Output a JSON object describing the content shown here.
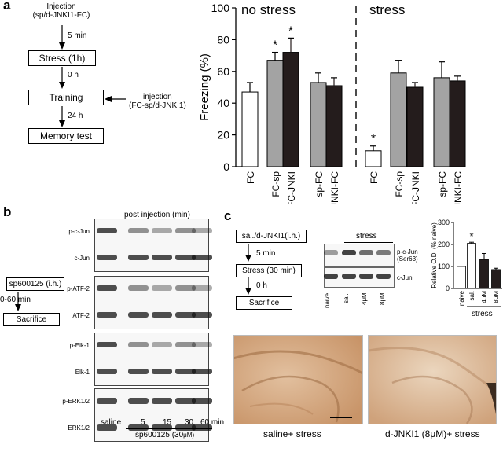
{
  "panel_a": {
    "label": "a",
    "flow": {
      "injection_top": "Injection",
      "injection_top_sub": "(sp/d-JNKI1-FC)",
      "t1": "5 min",
      "step1": "Stress (1h)",
      "t2": "0 h",
      "step2": "Training",
      "side_injection": "injection",
      "side_injection_sub": "(FC-sp/d-JNKI1)",
      "t3": "24 h",
      "step3": "Memory test"
    },
    "chart_data": {
      "type": "bar",
      "ylabel": "Freezing (%)",
      "ylim": [
        0,
        100
      ],
      "yticks": [
        "0",
        "20",
        "40",
        "60",
        "80",
        "100"
      ],
      "group_labels": [
        "no stress",
        "stress"
      ],
      "categories": [
        "FC",
        "FC-sp",
        "FC-JNKI",
        "sp-FC",
        "JNKI-FC",
        "FC",
        "FC-sp",
        "FC-JNKI",
        "sp-FC",
        "JNKI-FC"
      ],
      "values": [
        47,
        67,
        72,
        53,
        51,
        10,
        59,
        50,
        56,
        54
      ],
      "errors": [
        6,
        5,
        9,
        6,
        5,
        3,
        8,
        3,
        10,
        3
      ],
      "colors": [
        "#ffffff",
        "#a3a3a3",
        "#241c1c",
        "#a3a3a3",
        "#241c1c",
        "#ffffff",
        "#a3a3a3",
        "#241c1c",
        "#a3a3a3",
        "#241c1c"
      ],
      "significance": [
        "",
        "*",
        "*",
        "",
        "",
        "*",
        "",
        "",
        "",
        ""
      ]
    }
  },
  "panel_b": {
    "label": "b",
    "header": "post injection (min)",
    "flow": {
      "drug": "sp600125 (i.h.)",
      "time": "0-60 min",
      "end": "Sacrifice"
    },
    "blots": [
      "p-c-Jun",
      "c-Jun",
      "p-ATF-2",
      "ATF-2",
      "p-Elk-1",
      "Elk-1",
      "p-ERK1/2",
      "ERK1/2"
    ],
    "lanes": [
      "saline",
      "5",
      "15",
      "30",
      "60 min"
    ],
    "treatment": "sp600125 (30",
    "treatment_unit": "μM)"
  },
  "panel_c": {
    "label": "c",
    "flow": {
      "drug": "sal./d-JNKI1(i.h.)",
      "t1": "5 min",
      "step": "Stress (30 min)",
      "t2": "0 h",
      "end": "Sacrifice"
    },
    "blot_header": "stress",
    "blots": [
      "p-c-Jun",
      "(Ser63)",
      "c-Jun"
    ],
    "lanes": [
      "naive",
      "sal.",
      "4μM",
      "8μM"
    ],
    "chart_data": {
      "type": "bar",
      "ylabel": "Relative O.D. (% naive)",
      "ylim": [
        0,
        300
      ],
      "yticks": [
        "0",
        "100",
        "200",
        "300"
      ],
      "categories": [
        "naive",
        "sal.",
        "4μM",
        "8μM"
      ],
      "values": [
        100,
        205,
        132,
        86
      ],
      "errors": [
        0,
        5,
        27,
        6
      ],
      "colors": [
        "#ffffff",
        "#ffffff",
        "#241c1c",
        "#241c1c"
      ],
      "significance": [
        "",
        "*",
        "",
        ""
      ],
      "group_label": "stress"
    },
    "images": {
      "left_caption": "saline+ stress",
      "right_caption": "d-JNKI1 (8μM)+ stress"
    }
  }
}
